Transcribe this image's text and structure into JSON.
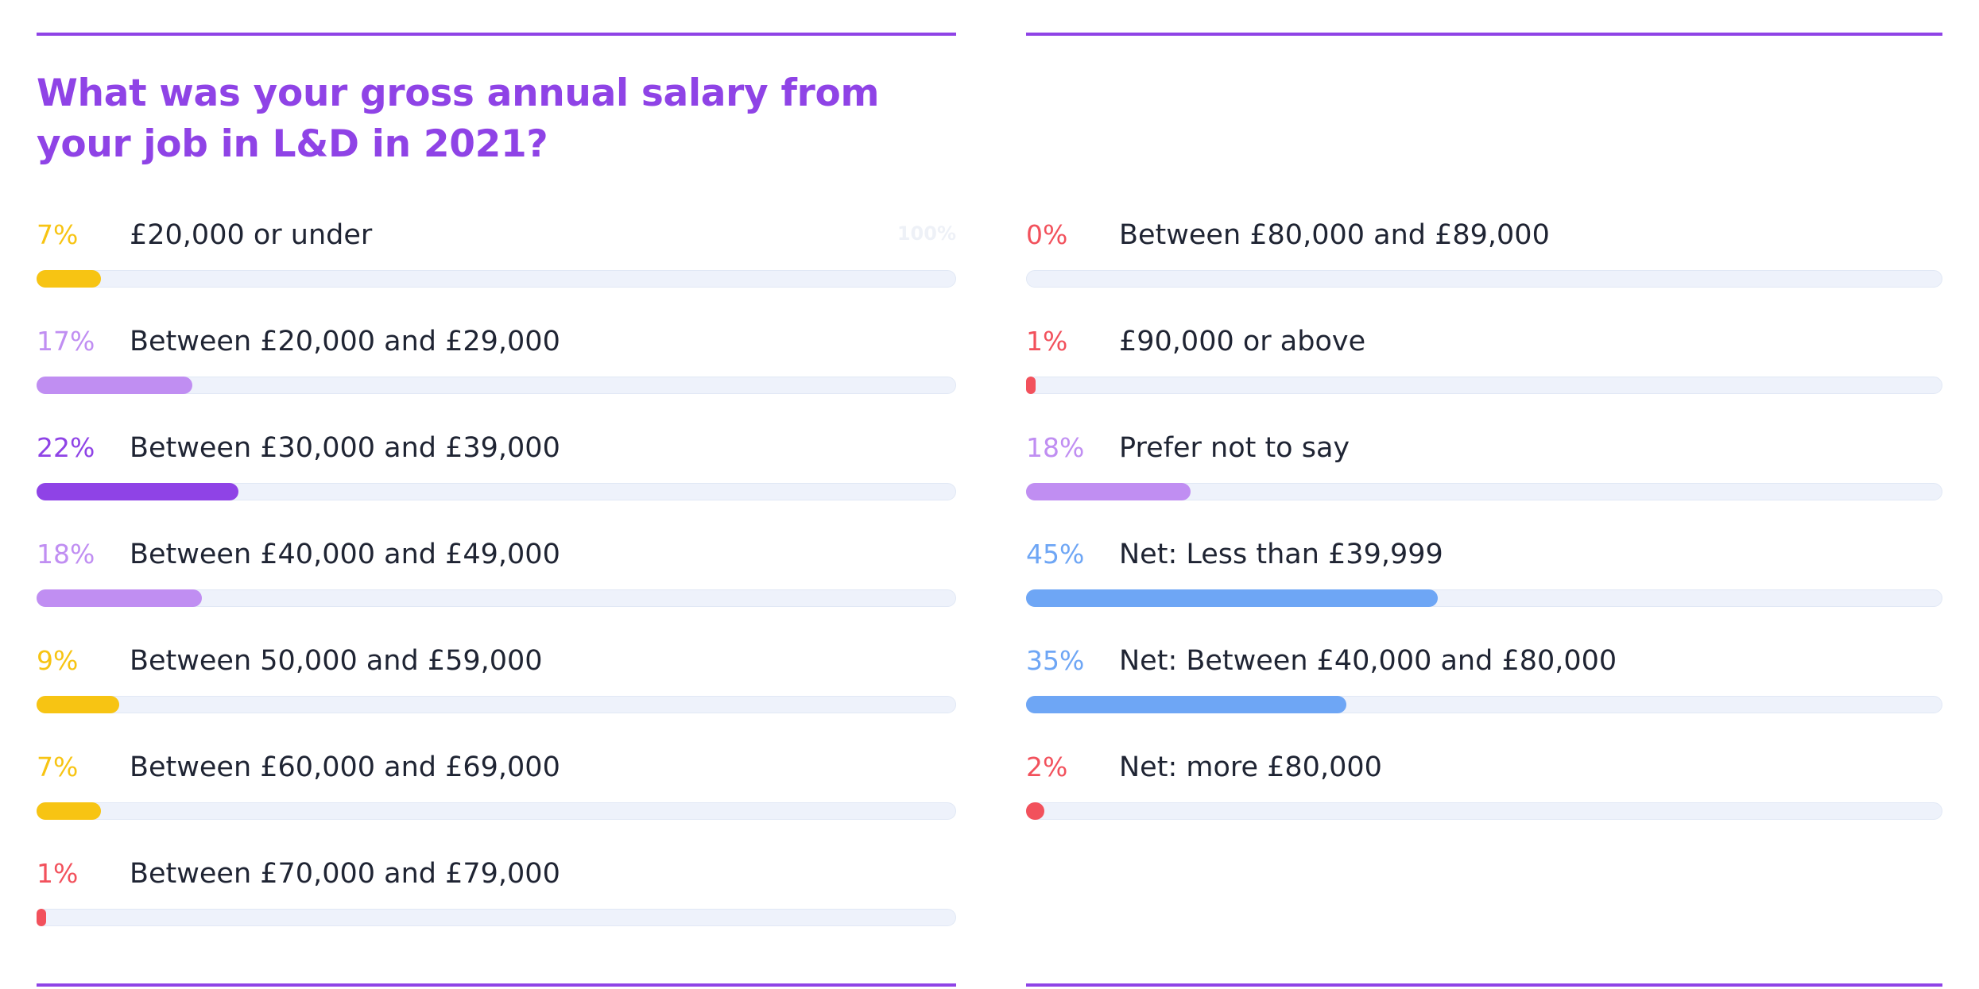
{
  "chart_data": {
    "type": "bar",
    "orientation": "horizontal",
    "title": "What was your gross annual salary from your job in L&D in 2021?",
    "scale_max_label": "100%",
    "xlim": [
      0,
      100
    ],
    "categories": [
      "£20,000 or under",
      "Between £20,000 and £29,000",
      "Between £30,000 and £39,000",
      "Between £40,000 and £49,000",
      "Between 50,000 and £59,000",
      "Between £60,000 and £69,000",
      "Between £70,000 and £79,000",
      "Between £80,000 and £89,000",
      "£90,000 or above",
      "Prefer not to say",
      "Net: Less than £39,999",
      "Net: Between £40,000 and £80,000",
      "Net: more £80,000"
    ],
    "values": [
      7,
      17,
      22,
      18,
      9,
      7,
      1,
      0,
      1,
      18,
      45,
      35,
      2
    ],
    "value_labels": [
      "7%",
      "17%",
      "22%",
      "18%",
      "9%",
      "7%",
      "1%",
      "0%",
      "1%",
      "18%",
      "45%",
      "35%",
      "2%"
    ],
    "colors": [
      "#f7c413",
      "#c08ef2",
      "#8f43e6",
      "#c08ef2",
      "#f7c413",
      "#f7c413",
      "#f2515c",
      "#f2515c",
      "#f2515c",
      "#c08ef2",
      "#6ea6f5",
      "#6ea6f5",
      "#f2515c"
    ]
  }
}
